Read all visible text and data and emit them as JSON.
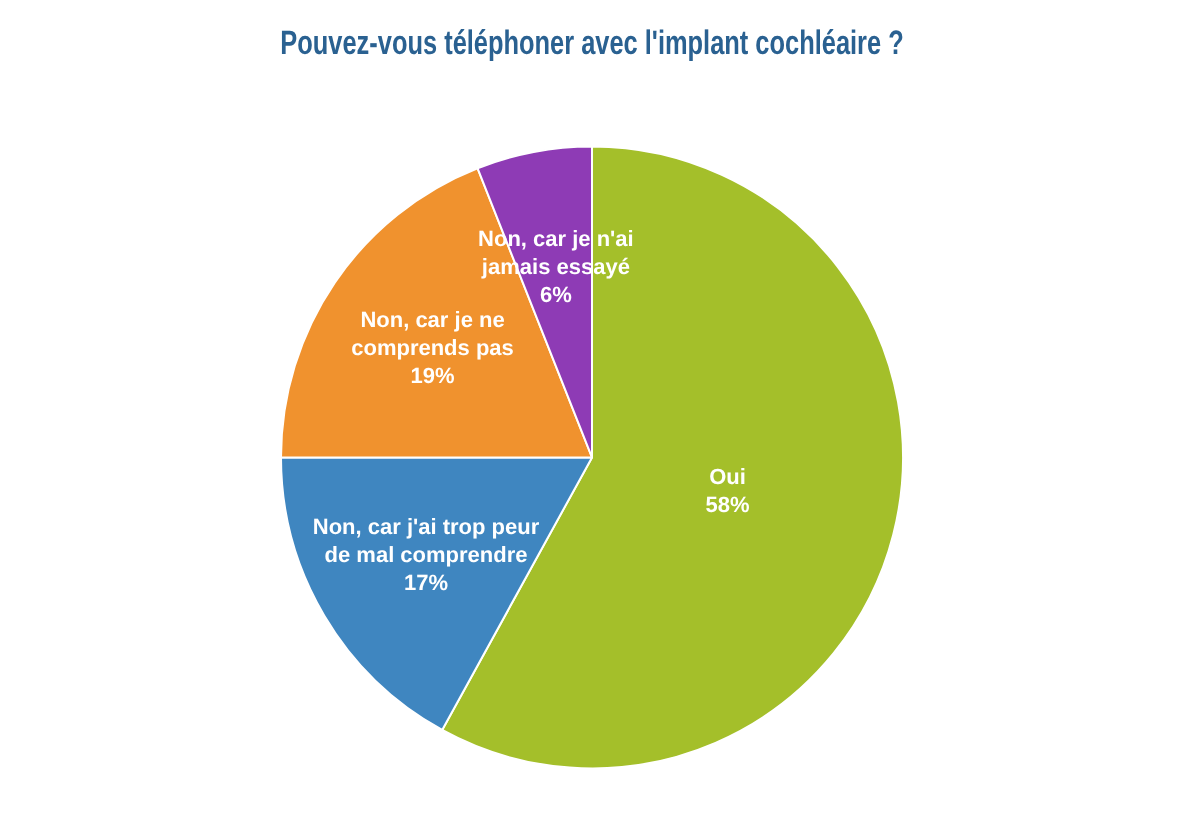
{
  "chart_data": {
    "type": "pie",
    "title": "Pouvez-vous téléphoner avec l'implant cochléaire ?",
    "categories": [
      "Oui",
      "Non, car j'ai trop peur de mal comprendre",
      "Non, car je ne comprends pas",
      "Non, car je n'ai jamais essayé"
    ],
    "values": [
      58,
      17,
      19,
      6
    ],
    "colors": [
      "#a4bf2a",
      "#3f86c0",
      "#f0922e",
      "#8e3bb5"
    ],
    "value_labels": [
      "58%",
      "17%",
      "19%",
      "6%"
    ],
    "legend": false
  }
}
